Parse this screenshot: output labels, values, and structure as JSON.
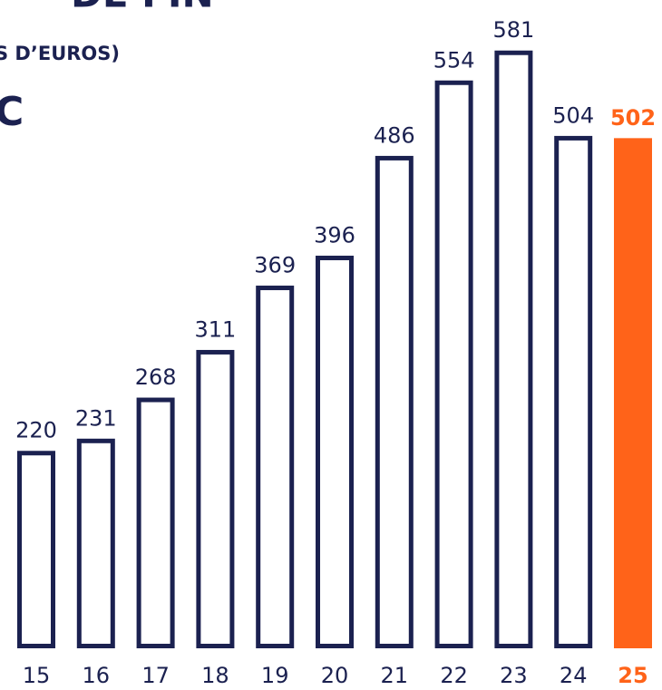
{
  "chart_data": {
    "type": "bar",
    "title": "DE FIN",
    "subtitle": "S D’EUROS)",
    "annotation": "C",
    "categories": [
      "15",
      "16",
      "17",
      "18",
      "19",
      "20",
      "21",
      "22",
      "23",
      "24",
      "25"
    ],
    "values": [
      220,
      231,
      268,
      311,
      369,
      396,
      486,
      554,
      581,
      504,
      502
    ],
    "color": "#1b2150",
    "highlight_index": 10,
    "highlight_color": "#ff6319",
    "ylim": [
      44,
      600
    ],
    "grid": false
  }
}
